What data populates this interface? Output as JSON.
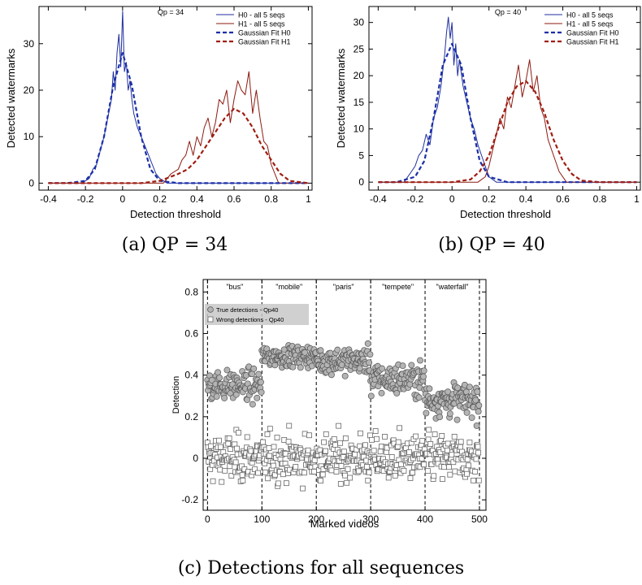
{
  "chart_data": [
    {
      "id": "a",
      "type": "line",
      "caption": "(a) QP = 34",
      "title": "Qp = 34",
      "xlabel": "Detection threshold",
      "ylabel": "Detected watermarks",
      "xlim": [
        -0.45,
        1.02
      ],
      "ylim": [
        -1.5,
        38
      ],
      "xticks": [
        -0.4,
        -0.2,
        0,
        0.2,
        0.4,
        0.6,
        0.8,
        1
      ],
      "xtick_labels": [
        "-0.4",
        "-0.2",
        "0",
        "0.2",
        "0.4",
        "0.6",
        "0.8",
        "1"
      ],
      "yticks": [
        0,
        10,
        20,
        30
      ],
      "legend_position": "top-right",
      "series": [
        {
          "name": "H0 - all 5 seqs",
          "color": "#1f2f9e",
          "style": "solid",
          "x": [
            -0.4,
            -0.22,
            -0.18,
            -0.16,
            -0.14,
            -0.12,
            -0.1,
            -0.08,
            -0.06,
            -0.05,
            -0.04,
            -0.03,
            -0.02,
            -0.01,
            0,
            0.01,
            0.02,
            0.03,
            0.04,
            0.05,
            0.06,
            0.08,
            0.1,
            0.12,
            0.14,
            0.16,
            0.18,
            0.2,
            0.24,
            1.0
          ],
          "y": [
            0,
            0,
            1,
            3,
            4,
            7,
            10,
            14,
            18,
            24,
            20,
            28,
            32,
            25,
            37,
            24,
            26,
            20,
            22,
            18,
            15,
            12,
            10,
            8,
            6,
            4,
            2,
            1,
            0,
            0
          ]
        },
        {
          "name": "H1 - all 5 seqs",
          "color": "#8b1a10",
          "style": "solid",
          "x": [
            -0.4,
            0.22,
            0.26,
            0.3,
            0.32,
            0.34,
            0.36,
            0.38,
            0.4,
            0.42,
            0.44,
            0.46,
            0.48,
            0.5,
            0.52,
            0.54,
            0.56,
            0.58,
            0.6,
            0.62,
            0.64,
            0.66,
            0.68,
            0.7,
            0.72,
            0.74,
            0.76,
            0.78,
            0.8,
            0.84,
            1.0
          ],
          "y": [
            0,
            0,
            2,
            3,
            5,
            6,
            9,
            6,
            10,
            8,
            12,
            14,
            10,
            13,
            18,
            17,
            20,
            13,
            18,
            22,
            20,
            19,
            24,
            15,
            20,
            14,
            9,
            8,
            4,
            0,
            0
          ]
        },
        {
          "name": "Gaussian Fit H0",
          "color": "#1a2fa8",
          "style": "dashed",
          "x": [
            -0.4,
            -0.3,
            -0.2,
            -0.15,
            -0.1,
            -0.05,
            0,
            0.05,
            0.1,
            0.15,
            0.2,
            0.3,
            0.4,
            0.6,
            0.8,
            1.0
          ],
          "y": [
            0,
            0,
            0.5,
            3,
            10,
            21,
            28,
            21,
            10,
            3,
            0.5,
            0,
            0,
            0,
            0,
            0
          ]
        },
        {
          "name": "Gaussian Fit H1",
          "color": "#a01d12",
          "style": "dashed",
          "x": [
            -0.4,
            0.1,
            0.2,
            0.3,
            0.35,
            0.4,
            0.45,
            0.5,
            0.55,
            0.6,
            0.65,
            0.7,
            0.75,
            0.8,
            0.85,
            0.9,
            1.0
          ],
          "y": [
            0,
            0,
            0.5,
            2,
            3,
            5,
            8,
            11,
            14,
            16,
            15,
            12,
            8,
            5,
            2,
            0.5,
            0
          ]
        }
      ]
    },
    {
      "id": "b",
      "type": "line",
      "caption": "(b) QP = 40",
      "title": "Qp = 40",
      "xlabel": "Detection threshold",
      "ylabel": "Detected watermarks",
      "xlim": [
        -0.45,
        1.02
      ],
      "ylim": [
        -1.5,
        33
      ],
      "xticks": [
        -0.4,
        -0.2,
        0,
        0.2,
        0.4,
        0.6,
        0.8,
        1
      ],
      "xtick_labels": [
        "-0.4",
        "-0.2",
        "0",
        "0.2",
        "0.4",
        "0.6",
        "0.8",
        "1"
      ],
      "yticks": [
        0,
        5,
        10,
        15,
        20,
        25,
        30
      ],
      "legend_position": "top-right",
      "series": [
        {
          "name": "H0 - all 5 seqs",
          "color": "#1f2f9e",
          "style": "solid",
          "x": [
            -0.4,
            -0.26,
            -0.22,
            -0.2,
            -0.18,
            -0.16,
            -0.14,
            -0.12,
            -0.1,
            -0.08,
            -0.06,
            -0.04,
            -0.03,
            -0.02,
            -0.01,
            0,
            0.01,
            0.02,
            0.03,
            0.04,
            0.06,
            0.08,
            0.1,
            0.12,
            0.14,
            0.16,
            0.18,
            0.2,
            0.24,
            1.0
          ],
          "y": [
            0,
            0,
            2,
            3,
            5,
            6,
            9,
            7,
            12,
            14,
            18,
            24,
            28,
            31,
            27,
            30,
            22,
            26,
            20,
            23,
            18,
            15,
            12,
            10,
            7,
            5,
            3,
            1,
            0,
            0
          ]
        },
        {
          "name": "H1 - all 5 seqs",
          "color": "#8b1a10",
          "style": "solid",
          "x": [
            -0.4,
            0.14,
            0.18,
            0.2,
            0.22,
            0.24,
            0.26,
            0.28,
            0.3,
            0.32,
            0.34,
            0.36,
            0.38,
            0.4,
            0.42,
            0.44,
            0.46,
            0.48,
            0.5,
            0.52,
            0.54,
            0.56,
            0.58,
            0.62,
            1.0
          ],
          "y": [
            0,
            0,
            1,
            3,
            6,
            9,
            12,
            10,
            16,
            14,
            18,
            22,
            16,
            19,
            23,
            17,
            20,
            14,
            12,
            8,
            6,
            4,
            2,
            0,
            0
          ]
        },
        {
          "name": "Gaussian Fit H0",
          "color": "#1a2fa8",
          "style": "dashed",
          "x": [
            -0.4,
            -0.3,
            -0.2,
            -0.15,
            -0.1,
            -0.05,
            0,
            0.05,
            0.1,
            0.15,
            0.2,
            0.3,
            0.4,
            0.6,
            0.8,
            1.0
          ],
          "y": [
            0,
            0,
            1,
            4,
            12,
            22,
            26,
            22,
            12,
            4,
            1,
            0,
            0,
            0,
            0,
            0
          ]
        },
        {
          "name": "Gaussian Fit H1",
          "color": "#a01d12",
          "style": "dashed",
          "x": [
            -0.4,
            0,
            0.1,
            0.15,
            0.2,
            0.25,
            0.3,
            0.35,
            0.4,
            0.45,
            0.5,
            0.55,
            0.6,
            0.65,
            0.7,
            0.8,
            1.0
          ],
          "y": [
            0,
            0,
            0.5,
            2,
            5,
            10,
            15,
            18,
            19,
            17,
            13,
            8,
            4,
            1.5,
            0.3,
            0,
            0
          ]
        }
      ]
    },
    {
      "id": "c",
      "type": "scatter",
      "caption": "(c) Detections for all sequences",
      "xlabel": "Marked videos",
      "ylabel": "Detection",
      "xlim": [
        -8,
        512
      ],
      "ylim": [
        -0.25,
        0.86
      ],
      "xticks": [
        0,
        100,
        200,
        300,
        400,
        500
      ],
      "xtick_labels": [
        "0",
        "100",
        "200",
        "300",
        "400",
        "500"
      ],
      "yticks": [
        -0.2,
        0,
        0.2,
        0.4,
        0.6,
        0.8
      ],
      "ytick_labels": [
        "-0.2",
        "0",
        "0.2",
        "0.4",
        "0.6",
        "0.8"
      ],
      "legend_position": "top-left",
      "separators": [
        0,
        100,
        200,
        300,
        400,
        500
      ],
      "segments": [
        {
          "label": "\"bus\"",
          "from": 0,
          "to": 100,
          "true_mean": 0.35,
          "true_spread": 0.05
        },
        {
          "label": "\"mobile\"",
          "from": 100,
          "to": 200,
          "true_mean": 0.49,
          "true_spread": 0.035
        },
        {
          "label": "\"paris\"",
          "from": 200,
          "to": 300,
          "true_mean": 0.47,
          "true_spread": 0.045
        },
        {
          "label": "\"tempete\"",
          "from": 300,
          "to": 400,
          "true_mean": 0.38,
          "true_spread": 0.055
        },
        {
          "label": "\"waterfall\"",
          "from": 400,
          "to": 500,
          "true_mean": 0.28,
          "true_spread": 0.055
        }
      ],
      "series": [
        {
          "name": "True detections - Qp40",
          "marker": "circle",
          "fill": "#b4b4b4",
          "stroke": "#555555",
          "count_per_segment": 100
        },
        {
          "name": "Wrong detections - Qp40",
          "marker": "square",
          "fill": "#ffffff",
          "stroke": "#666666",
          "mean": 0.0,
          "spread": 0.08,
          "count_per_segment": 100
        }
      ]
    }
  ]
}
